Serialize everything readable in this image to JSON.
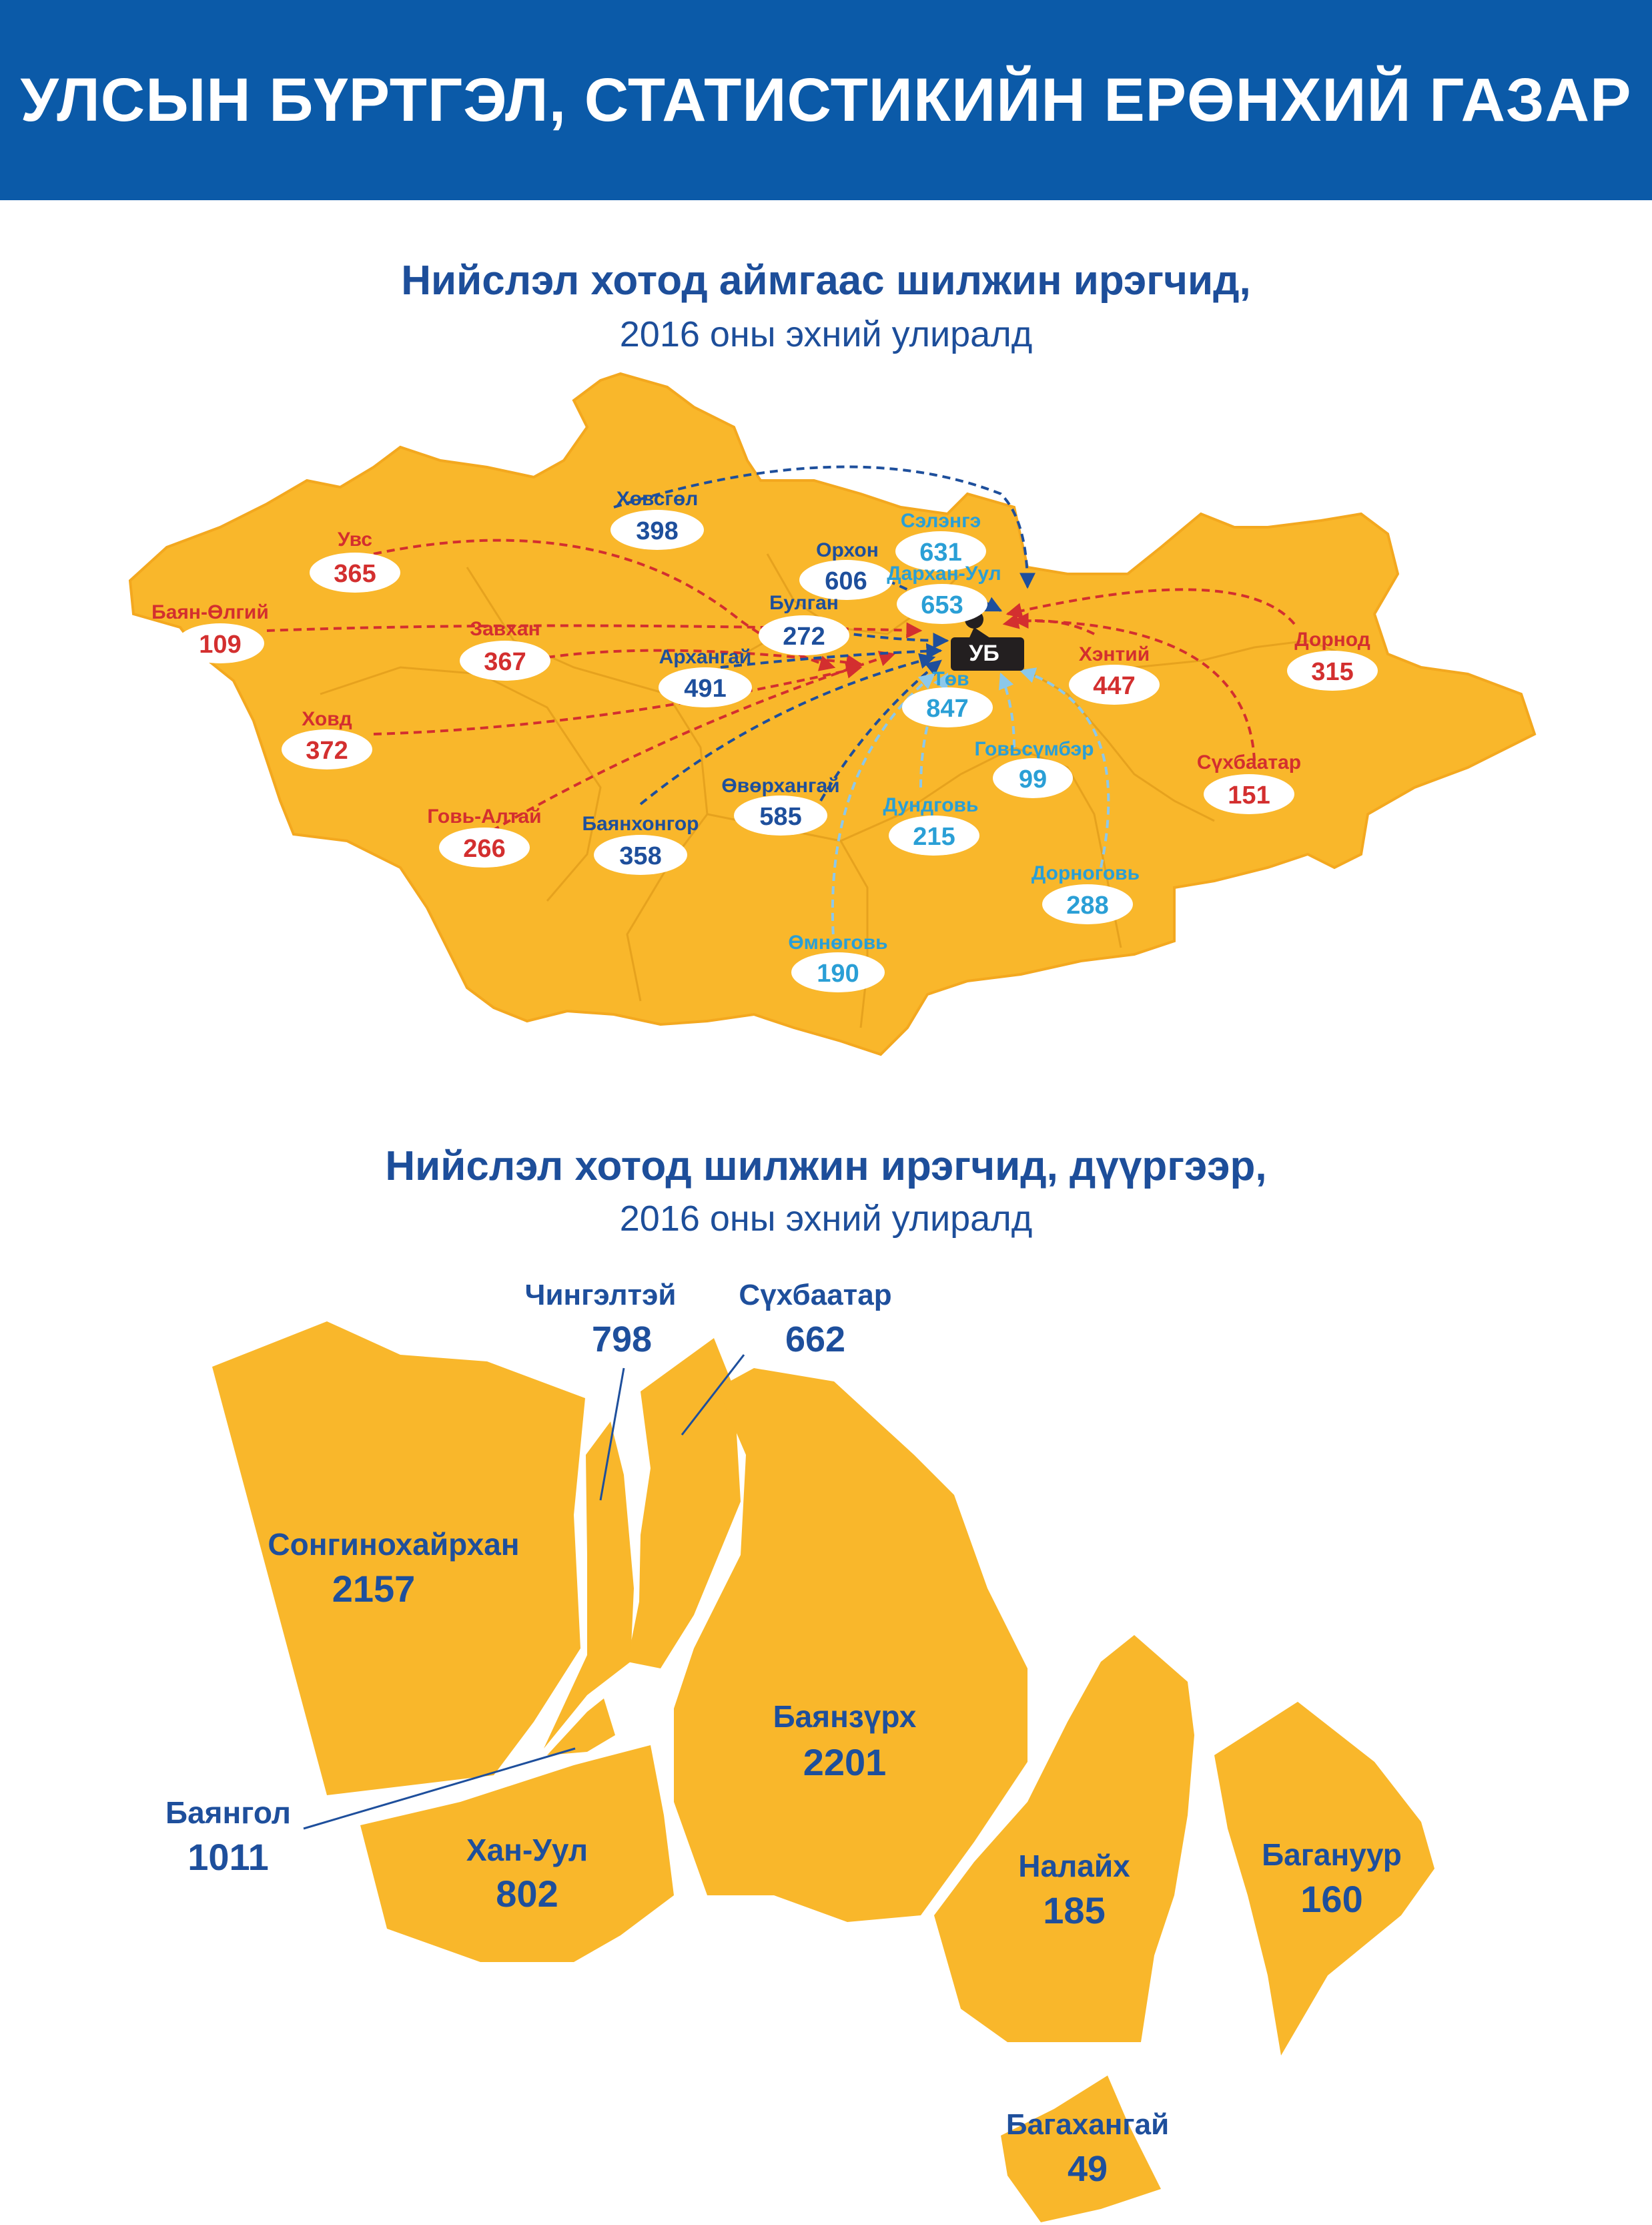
{
  "header": {
    "title": "УЛСЫН БҮРТГЭЛ, СТАТИСТИКИЙН ЕРӨНХИЙ ГАЗАР"
  },
  "map1": {
    "title": "Нийслэл хотод аймгаас шилжин ирэгчид,",
    "subtitle": "2016 оны эхний улиралд",
    "hub": "УБ",
    "colors": {
      "region_fill": "#f9b72b",
      "west_group": "#d32f2f",
      "central_group": "#1e4f9c",
      "south_group": "#2a9fd6"
    },
    "provinces": [
      {
        "name": "Увс",
        "value": "365",
        "group": "west"
      },
      {
        "name": "Баян-Өлгий",
        "value": "109",
        "group": "west"
      },
      {
        "name": "Завхан",
        "value": "367",
        "group": "west"
      },
      {
        "name": "Ховд",
        "value": "372",
        "group": "west"
      },
      {
        "name": "Говь-Алтай",
        "value": "266",
        "group": "west"
      },
      {
        "name": "Хэнтий",
        "value": "447",
        "group": "west"
      },
      {
        "name": "Дорнод",
        "value": "315",
        "group": "west"
      },
      {
        "name": "Сүхбаатар",
        "value": "151",
        "group": "west"
      },
      {
        "name": "Хөвсгөл",
        "value": "398",
        "group": "central"
      },
      {
        "name": "Орхон",
        "value": "606",
        "group": "central"
      },
      {
        "name": "Булган",
        "value": "272",
        "group": "central"
      },
      {
        "name": "Архангай",
        "value": "491",
        "group": "central"
      },
      {
        "name": "Баянхонгор",
        "value": "358",
        "group": "central"
      },
      {
        "name": "Өвөрхангай",
        "value": "585",
        "group": "central"
      },
      {
        "name": "Сэлэнгэ",
        "value": "631",
        "group": "south"
      },
      {
        "name": "Дархан-Уул",
        "value": "653",
        "group": "south"
      },
      {
        "name": "Төв",
        "value": "847",
        "group": "south"
      },
      {
        "name": "Говьсүмбэр",
        "value": "99",
        "group": "south"
      },
      {
        "name": "Дундговь",
        "value": "215",
        "group": "south"
      },
      {
        "name": "Дорноговь",
        "value": "288",
        "group": "south"
      },
      {
        "name": "Өмнөговь",
        "value": "190",
        "group": "south"
      }
    ]
  },
  "map2": {
    "title": "Нийслэл хотод шилжин ирэгчид, дүүргээр,",
    "subtitle": "2016 оны эхний улиралд",
    "districts": [
      {
        "name": "Сонгинохайрхан",
        "value": "2157"
      },
      {
        "name": "Чингэлтэй",
        "value": "798"
      },
      {
        "name": "Сүхбаатар",
        "value": "662"
      },
      {
        "name": "Баянзүрх",
        "value": "2201"
      },
      {
        "name": "Баянгол",
        "value": "1011"
      },
      {
        "name": "Хан-Уул",
        "value": "802"
      },
      {
        "name": "Налайх",
        "value": "185"
      },
      {
        "name": "Багануур",
        "value": "160"
      },
      {
        "name": "Багахангай",
        "value": "49"
      }
    ]
  }
}
